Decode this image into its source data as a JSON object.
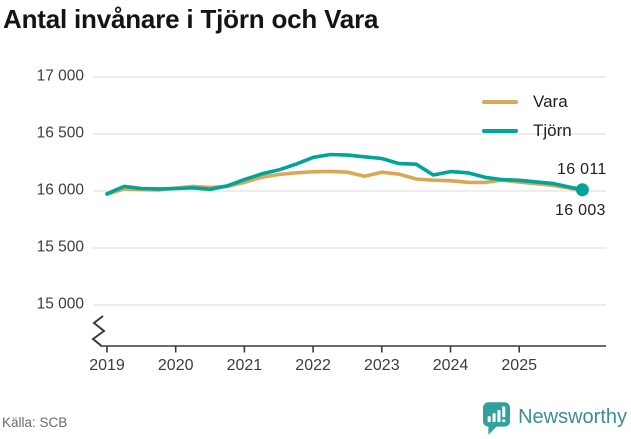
{
  "title": "Antal invånare i Tjörn och Vara",
  "source": "Källa: SCB",
  "brand": {
    "name": "Newsworthy"
  },
  "legend": [
    {
      "label": "Vara",
      "color": "#d9a857"
    },
    {
      "label": "Tjörn",
      "color": "#00a49a"
    }
  ],
  "end_labels": {
    "top": "16 011",
    "bottom": "16 003"
  },
  "colors": {
    "grid": "#e2e2e2",
    "axis": "#3a3a3a",
    "tick_text": "#3d3d3d",
    "title_text": "#141414",
    "accent_gold": "#d9a857",
    "accent_teal": "#00a49a",
    "brand_text": "#3f8d8e",
    "brand_bg": "#33a0a0"
  },
  "chart_data": {
    "type": "line",
    "title": "Antal invånare i Tjörn och Vara",
    "xlabel": "",
    "ylabel": "",
    "x": [
      2019.0,
      2019.25,
      2019.5,
      2019.75,
      2020.0,
      2020.25,
      2020.5,
      2020.75,
      2021.0,
      2021.25,
      2021.5,
      2021.75,
      2022.0,
      2022.25,
      2022.5,
      2022.75,
      2023.0,
      2023.25,
      2023.5,
      2023.75,
      2024.0,
      2024.25,
      2024.5,
      2024.75,
      2025.0,
      2025.25,
      2025.5,
      2025.75,
      2025.92
    ],
    "series": [
      {
        "name": "Vara",
        "color": "#d9a857",
        "values": [
          15972,
          16018,
          16012,
          16010,
          16025,
          16040,
          16032,
          16040,
          16075,
          16120,
          16145,
          16160,
          16168,
          16172,
          16165,
          16130,
          16165,
          16148,
          16105,
          16095,
          16090,
          16076,
          16075,
          16095,
          16078,
          16064,
          16048,
          16024,
          16003
        ]
      },
      {
        "name": "Tjörn",
        "color": "#00a49a",
        "end_dot": true,
        "values": [
          15975,
          16040,
          16022,
          16018,
          16022,
          16028,
          16015,
          16045,
          16100,
          16150,
          16185,
          16235,
          16295,
          16320,
          16315,
          16300,
          16285,
          16240,
          16235,
          16140,
          16170,
          16160,
          16120,
          16100,
          16094,
          16080,
          16065,
          16032,
          16011
        ]
      }
    ],
    "end_values": {
      "Tjörn": 16011,
      "Vara": 16003
    },
    "xticks": [
      "2019",
      "2020",
      "2021",
      "2022",
      "2023",
      "2024",
      "2025"
    ],
    "yticks": [
      {
        "label": "17 000",
        "value": 17000
      },
      {
        "label": "16 500",
        "value": 16500
      },
      {
        "label": "16 000",
        "value": 16000
      },
      {
        "label": "15 500",
        "value": 15500
      },
      {
        "label": "15 000",
        "value": 15000
      }
    ],
    "ylim": [
      15000,
      17000
    ],
    "axis_break": true,
    "grid": true,
    "legend_position": "top-right"
  }
}
